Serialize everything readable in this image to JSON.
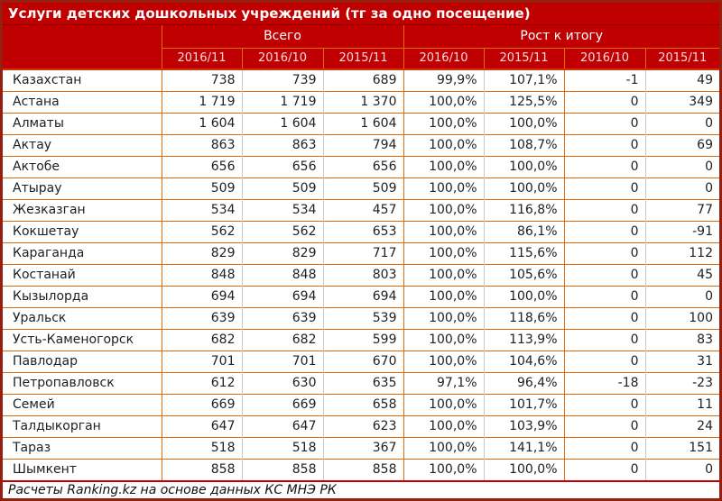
{
  "title": "Услуги детских дошкольных учреждений (тг за одно посещение)",
  "header": {
    "groups": [
      {
        "label": "Всего",
        "span": 3
      },
      {
        "label": "Рост к итогу",
        "span": 4
      }
    ],
    "columns": [
      "2016/11",
      "2016/10",
      "2015/11",
      "2016/10",
      "2015/11",
      "2016/10",
      "2015/11"
    ]
  },
  "rows": [
    {
      "name": "Казахстан",
      "values": [
        "738",
        "739",
        "689",
        "99,9%",
        "107,1%",
        "-1",
        "49"
      ]
    },
    {
      "name": "Астана",
      "values": [
        "1 719",
        "1 719",
        "1 370",
        "100,0%",
        "125,5%",
        "0",
        "349"
      ]
    },
    {
      "name": "Алматы",
      "values": [
        "1 604",
        "1 604",
        "1 604",
        "100,0%",
        "100,0%",
        "0",
        "0"
      ]
    },
    {
      "name": "Актау",
      "values": [
        "863",
        "863",
        "794",
        "100,0%",
        "108,7%",
        "0",
        "69"
      ]
    },
    {
      "name": "Актобе",
      "values": [
        "656",
        "656",
        "656",
        "100,0%",
        "100,0%",
        "0",
        "0"
      ]
    },
    {
      "name": "Атырау",
      "values": [
        "509",
        "509",
        "509",
        "100,0%",
        "100,0%",
        "0",
        "0"
      ]
    },
    {
      "name": "Жезказган",
      "values": [
        "534",
        "534",
        "457",
        "100,0%",
        "116,8%",
        "0",
        "77"
      ]
    },
    {
      "name": "Кокшетау",
      "values": [
        "562",
        "562",
        "653",
        "100,0%",
        "86,1%",
        "0",
        "-91"
      ]
    },
    {
      "name": "Караганда",
      "values": [
        "829",
        "829",
        "717",
        "100,0%",
        "115,6%",
        "0",
        "112"
      ]
    },
    {
      "name": "Костанай",
      "values": [
        "848",
        "848",
        "803",
        "100,0%",
        "105,6%",
        "0",
        "45"
      ]
    },
    {
      "name": "Кызылорда",
      "values": [
        "694",
        "694",
        "694",
        "100,0%",
        "100,0%",
        "0",
        "0"
      ]
    },
    {
      "name": "Уральск",
      "values": [
        "639",
        "639",
        "539",
        "100,0%",
        "118,6%",
        "0",
        "100"
      ]
    },
    {
      "name": "Усть-Каменогорск",
      "values": [
        "682",
        "682",
        "599",
        "100,0%",
        "113,9%",
        "0",
        "83"
      ]
    },
    {
      "name": "Павлодар",
      "values": [
        "701",
        "701",
        "670",
        "100,0%",
        "104,6%",
        "0",
        "31"
      ]
    },
    {
      "name": "Петропавловск",
      "values": [
        "612",
        "630",
        "635",
        "97,1%",
        "96,4%",
        "-18",
        "-23"
      ]
    },
    {
      "name": "Семей",
      "values": [
        "669",
        "669",
        "658",
        "100,0%",
        "101,7%",
        "0",
        "11"
      ]
    },
    {
      "name": "Талдыкорган",
      "values": [
        "647",
        "647",
        "623",
        "100,0%",
        "103,9%",
        "0",
        "24"
      ]
    },
    {
      "name": "Тараз",
      "values": [
        "518",
        "518",
        "367",
        "100,0%",
        "141,1%",
        "0",
        "151"
      ]
    },
    {
      "name": "Шымкент",
      "values": [
        "858",
        "858",
        "858",
        "100,0%",
        "100,0%",
        "0",
        "0"
      ]
    }
  ],
  "footer": "Расчеты Ranking.kz на основе данных КС МНЭ РК",
  "colors": {
    "header_red": "#c00000",
    "outer_border": "#96200f",
    "grid_orange": "#e26b0a",
    "grid_gray": "#c8c8c8",
    "header_text": "#ffffff",
    "year_text": "#ffd9d9",
    "data_text": "#1f1f1f"
  }
}
